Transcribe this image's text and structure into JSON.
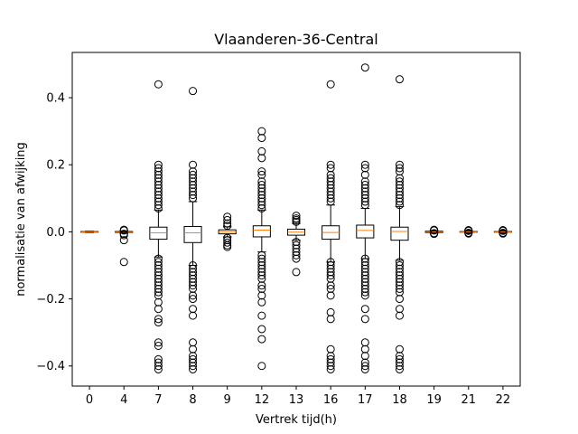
{
  "chart_data": {
    "type": "box",
    "title": "Vlaanderen-36-Central",
    "xlabel": "Vertrek tijd(h)",
    "ylabel": "normalisatie van afwijking",
    "ylim": [
      -0.46,
      0.535
    ],
    "yticks": [
      -0.4,
      -0.2,
      0.0,
      0.2,
      0.4
    ],
    "ytick_labels": [
      "−0.4",
      "−0.2",
      "0.0",
      "0.2",
      "0.4"
    ],
    "grid": false,
    "colors": {
      "median": "#ff7f0e",
      "box": "#000000",
      "flier": "#000000"
    },
    "categories": [
      "0",
      "4",
      "7",
      "8",
      "9",
      "12",
      "13",
      "16",
      "17",
      "18",
      "19",
      "21",
      "22"
    ],
    "boxes": [
      {
        "q1": -0.001,
        "median": 0.0,
        "q3": 0.001,
        "whislo": -0.002,
        "whishi": 0.002,
        "fliers": []
      },
      {
        "q1": -0.002,
        "median": -0.001,
        "q3": 0.001,
        "whislo": -0.004,
        "whishi": 0.003,
        "fliers": [
          0.006,
          0.004,
          -0.006,
          -0.01,
          -0.025,
          -0.09
        ]
      },
      {
        "q1": -0.022,
        "median": -0.003,
        "q3": 0.014,
        "whislo": -0.075,
        "whishi": 0.065,
        "fliers": [
          0.44,
          0.2,
          0.19,
          0.18,
          0.17,
          0.16,
          0.15,
          0.14,
          0.13,
          0.12,
          0.11,
          0.1,
          0.09,
          0.08,
          0.07,
          -0.08,
          -0.09,
          -0.1,
          -0.11,
          -0.12,
          -0.13,
          -0.14,
          -0.15,
          -0.16,
          -0.17,
          -0.18,
          -0.19,
          -0.21,
          -0.23,
          -0.26,
          -0.27,
          -0.33,
          -0.34,
          -0.38,
          -0.39,
          -0.4,
          -0.41
        ]
      },
      {
        "q1": -0.032,
        "median": -0.003,
        "q3": 0.016,
        "whislo": -0.1,
        "whishi": 0.09,
        "fliers": [
          0.42,
          0.2,
          0.18,
          0.17,
          0.16,
          0.15,
          0.14,
          0.13,
          0.12,
          0.11,
          0.1,
          -0.1,
          -0.11,
          -0.12,
          -0.13,
          -0.14,
          -0.15,
          -0.16,
          -0.17,
          -0.19,
          -0.2,
          -0.23,
          -0.25,
          -0.33,
          -0.35,
          -0.37,
          -0.38,
          -0.39,
          -0.4,
          -0.41
        ]
      },
      {
        "q1": -0.006,
        "median": 0.0,
        "q3": 0.006,
        "whislo": -0.015,
        "whishi": 0.015,
        "fliers": [
          0.045,
          0.035,
          0.025,
          0.018,
          -0.018,
          -0.025,
          -0.032,
          -0.04,
          -0.045
        ]
      },
      {
        "q1": -0.015,
        "median": 0.005,
        "q3": 0.018,
        "whislo": -0.06,
        "whishi": 0.065,
        "fliers": [
          0.3,
          0.28,
          0.24,
          0.22,
          0.18,
          0.17,
          0.15,
          0.14,
          0.13,
          0.12,
          0.11,
          0.1,
          0.09,
          0.08,
          0.07,
          -0.07,
          -0.08,
          -0.09,
          -0.1,
          -0.11,
          -0.12,
          -0.13,
          -0.14,
          -0.16,
          -0.17,
          -0.19,
          -0.21,
          -0.25,
          -0.29,
          -0.32,
          -0.4
        ]
      },
      {
        "q1": -0.01,
        "median": -0.001,
        "q3": 0.008,
        "whislo": -0.025,
        "whishi": 0.025,
        "fliers": [
          0.048,
          0.04,
          0.035,
          0.03,
          -0.03,
          -0.04,
          -0.05,
          -0.06,
          -0.07,
          -0.08,
          -0.12
        ]
      },
      {
        "q1": -0.022,
        "median": -0.002,
        "q3": 0.018,
        "whislo": -0.09,
        "whishi": 0.08,
        "fliers": [
          0.44,
          0.2,
          0.19,
          0.17,
          0.16,
          0.15,
          0.14,
          0.13,
          0.12,
          0.11,
          0.1,
          0.09,
          -0.09,
          -0.1,
          -0.11,
          -0.12,
          -0.13,
          -0.14,
          -0.16,
          -0.17,
          -0.19,
          -0.24,
          -0.26,
          -0.35,
          -0.37,
          -0.38,
          -0.39,
          -0.4,
          -0.41
        ]
      },
      {
        "q1": -0.018,
        "median": 0.004,
        "q3": 0.02,
        "whislo": -0.08,
        "whishi": 0.07,
        "fliers": [
          0.49,
          0.2,
          0.19,
          0.17,
          0.15,
          0.14,
          0.13,
          0.12,
          0.11,
          0.1,
          0.09,
          0.08,
          -0.08,
          -0.09,
          -0.1,
          -0.11,
          -0.12,
          -0.13,
          -0.14,
          -0.15,
          -0.16,
          -0.17,
          -0.18,
          -0.19,
          -0.23,
          -0.26,
          -0.33,
          -0.35,
          -0.37,
          -0.39,
          -0.4,
          -0.41
        ]
      },
      {
        "q1": -0.025,
        "median": 0.001,
        "q3": 0.014,
        "whislo": -0.085,
        "whishi": 0.075,
        "fliers": [
          0.455,
          0.2,
          0.19,
          0.18,
          0.16,
          0.15,
          0.14,
          0.13,
          0.12,
          0.11,
          0.1,
          0.09,
          0.08,
          -0.09,
          -0.1,
          -0.11,
          -0.12,
          -0.13,
          -0.14,
          -0.15,
          -0.16,
          -0.17,
          -0.18,
          -0.2,
          -0.23,
          -0.25,
          -0.35,
          -0.37,
          -0.38,
          -0.39,
          -0.4,
          -0.41
        ]
      },
      {
        "q1": -0.002,
        "median": 0.0,
        "q3": 0.002,
        "whislo": -0.004,
        "whishi": 0.004,
        "fliers": [
          0.006,
          0.004,
          -0.004,
          -0.006
        ]
      },
      {
        "q1": -0.001,
        "median": 0.0,
        "q3": 0.001,
        "whislo": -0.003,
        "whishi": 0.003,
        "fliers": [
          0.005,
          0.003,
          -0.003,
          -0.005
        ]
      },
      {
        "q1": -0.001,
        "median": 0.0,
        "q3": 0.001,
        "whislo": -0.003,
        "whishi": 0.003,
        "fliers": [
          0.005,
          0.003,
          -0.003,
          -0.005
        ]
      }
    ]
  }
}
